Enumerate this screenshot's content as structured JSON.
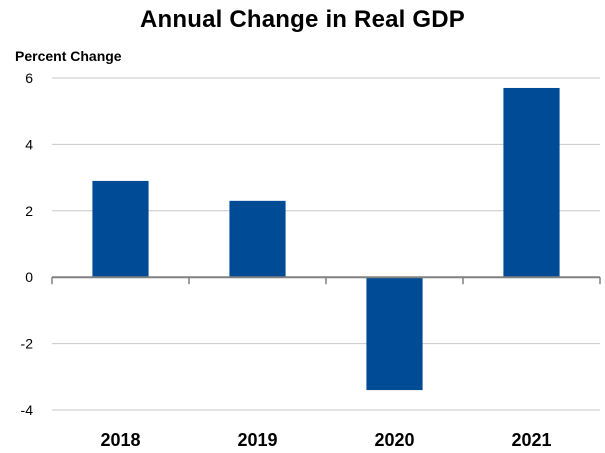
{
  "chart_data": {
    "type": "bar",
    "title": "Annual Change in Real GDP",
    "ylabel": "Percent Change",
    "xlabel": "",
    "categories": [
      "2018",
      "2019",
      "2020",
      "2021"
    ],
    "values": [
      2.9,
      2.3,
      -3.4,
      5.7
    ],
    "ylim": [
      -4,
      6
    ],
    "yticks": [
      6,
      4,
      2,
      0,
      -2,
      -4
    ],
    "grid": true,
    "bar_color": "#004b96",
    "grid_color": "#c8c8c8"
  }
}
